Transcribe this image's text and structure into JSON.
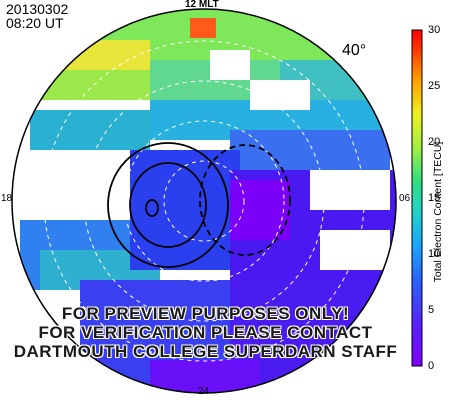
{
  "header": {
    "date": "20130302",
    "time": "08:20 UT"
  },
  "map": {
    "latitude_label": "40°",
    "mlt_labels": {
      "top": "12 MLT",
      "right": "06",
      "bottom": "24",
      "left": "18"
    }
  },
  "colorbar": {
    "title": "Total Electron Content [TECU]",
    "ticks": [
      "30",
      "25",
      "20",
      "15",
      "10",
      "5",
      "0"
    ],
    "min": 0,
    "max": 30
  },
  "watermark": [
    "FOR PREVIEW PURPOSES ONLY!",
    "FOR VERIFICATION PLEASE CONTACT",
    "DARTMOUTH COLLEGE SUPERDARN STAFF"
  ]
}
